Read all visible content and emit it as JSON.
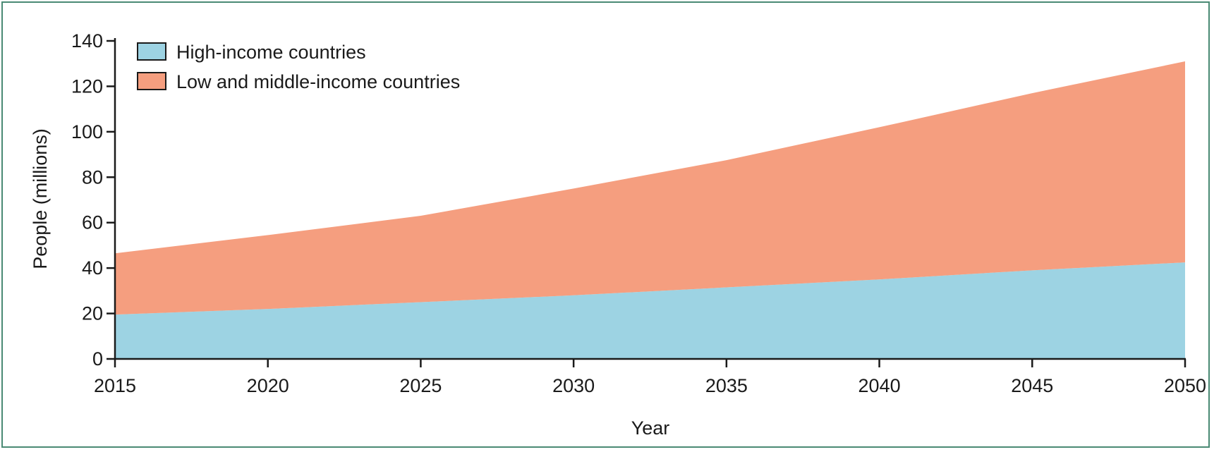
{
  "chart_data": {
    "type": "area",
    "stacked": true,
    "x": [
      2015,
      2020,
      2025,
      2030,
      2035,
      2040,
      2045,
      2050
    ],
    "xlabel": "Year",
    "ylabel": "People (millions)",
    "xlim": [
      2015,
      2050
    ],
    "ylim": [
      0,
      140
    ],
    "xticks": [
      "2015",
      "2020",
      "2025",
      "2030",
      "2035",
      "2040",
      "2045",
      "2050"
    ],
    "yticks": [
      "0",
      "20",
      "40",
      "60",
      "80",
      "100",
      "120",
      "140"
    ],
    "grid": false,
    "legend_position": "top-left",
    "series": [
      {
        "name": "High-income countries",
        "color": "#9dd3e3",
        "values": [
          19.5,
          22,
          25,
          28,
          31.5,
          35,
          39,
          42.5
        ]
      },
      {
        "name": "Low and middle-income countries",
        "color": "#f59e7f",
        "values": [
          27,
          32.5,
          38,
          47,
          56,
          67,
          78,
          88.5
        ]
      }
    ]
  }
}
